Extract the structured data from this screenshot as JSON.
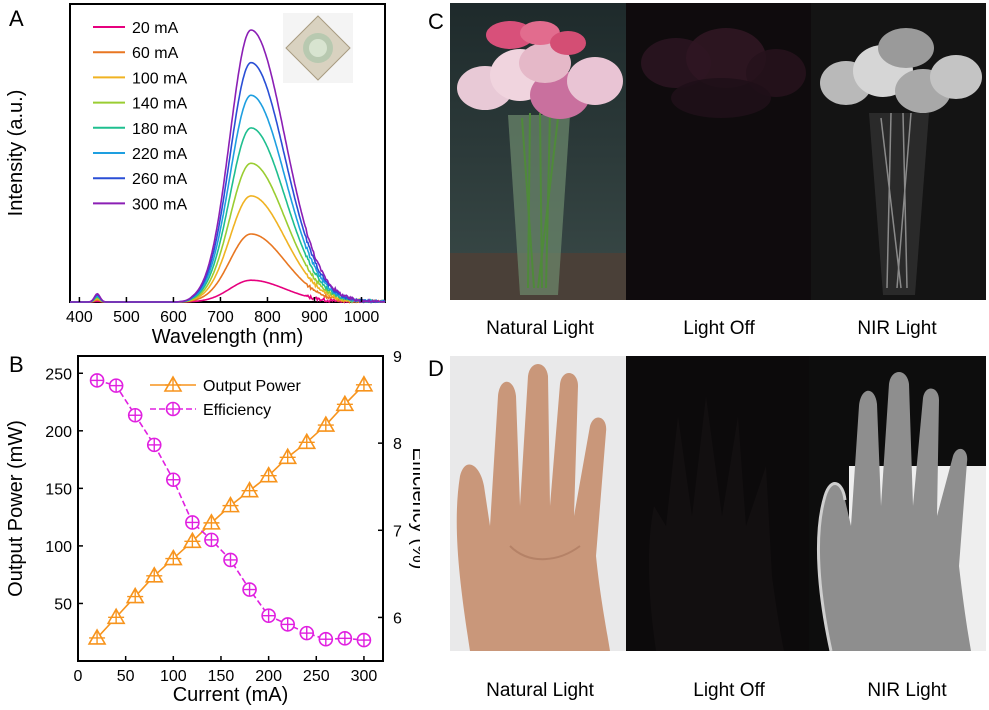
{
  "panels": {
    "a": "A",
    "b": "B",
    "c": "C",
    "d": "D"
  },
  "colors": {
    "series": [
      "#e6007e",
      "#e87722",
      "#f0b323",
      "#9acd32",
      "#1fbf8f",
      "#1e9fe0",
      "#2a4fd6",
      "#8b1fb5"
    ],
    "output_power": "#f7941d",
    "efficiency": "#e020e0"
  },
  "captions": {
    "c": [
      "Natural  Light",
      "Light  Off",
      "NIR Light"
    ],
    "d": [
      "Natural  Light",
      "Light  Off",
      "NIR Light"
    ]
  },
  "photos": {
    "c": [
      "natural-light-flowers-photo",
      "light-off-flowers-photo",
      "nir-light-flowers-photo"
    ],
    "d": [
      "natural-light-hand-photo",
      "light-off-hand-photo",
      "nir-light-hand-photo"
    ]
  },
  "chart_data": [
    {
      "type": "line",
      "xlabel": "Wavelength (nm)",
      "ylabel": "Intensity (a.u.)",
      "xlim": [
        380,
        1050
      ],
      "xticks": [
        400,
        500,
        600,
        700,
        800,
        900,
        1000
      ],
      "yticks": [],
      "grid": false,
      "legend_position": "top-left",
      "inset": "led-package-photo",
      "spectrum_shape": {
        "peak_nm": 765,
        "sigma_left_nm": 45,
        "sigma_right_nm": 72,
        "onset_nm": 640,
        "blue_peak_nm": 438,
        "blue_peak_rel": 0.03
      },
      "series": [
        {
          "name": "20 mA",
          "peak": 0.08
        },
        {
          "name": "60 mA",
          "peak": 0.25
        },
        {
          "name": "100 mA",
          "peak": 0.39
        },
        {
          "name": "140 mA",
          "peak": 0.51
        },
        {
          "name": "180 mA",
          "peak": 0.64
        },
        {
          "name": "220 mA",
          "peak": 0.76
        },
        {
          "name": "260 mA",
          "peak": 0.88
        },
        {
          "name": "300 mA",
          "peak": 1.0
        }
      ]
    },
    {
      "type": "line",
      "xlabel": "Current  (mA)",
      "ylabel": "Output Power (mW)",
      "y2label": "Efficiency (%)",
      "xlim": [
        0,
        320
      ],
      "ylim": [
        0,
        265
      ],
      "y2lim": [
        5.5,
        9
      ],
      "xticks": [
        0,
        50,
        100,
        150,
        200,
        250,
        300
      ],
      "yticks": [
        50,
        100,
        150,
        200,
        250
      ],
      "y2ticks": [
        6,
        7,
        8,
        9
      ],
      "grid": false,
      "legend_position": "top-center",
      "x": [
        20,
        40,
        60,
        80,
        100,
        120,
        140,
        160,
        180,
        200,
        220,
        240,
        260,
        280,
        300
      ],
      "series": [
        {
          "name": "Output Power",
          "axis": "left",
          "marker": "triangle-cross",
          "values": [
            20,
            38,
            56,
            74,
            89,
            104,
            120,
            135,
            148,
            161,
            177,
            190,
            205,
            223,
            240
          ]
        },
        {
          "name": "Efficiency",
          "axis": "right",
          "marker": "circle-plus",
          "values": [
            8.72,
            8.66,
            8.32,
            7.98,
            7.58,
            7.09,
            6.89,
            6.66,
            6.32,
            6.02,
            5.92,
            5.82,
            5.75,
            5.76,
            5.74
          ]
        }
      ]
    }
  ]
}
